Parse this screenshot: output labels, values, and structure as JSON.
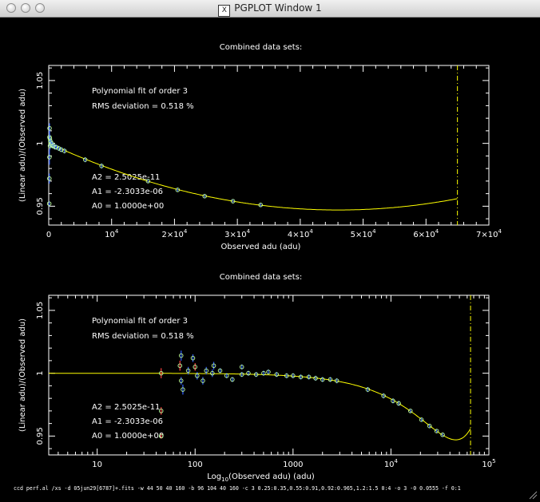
{
  "window": {
    "title": "PGPLOT Window 1",
    "icon": "x11-icon"
  },
  "command_line": "ccd perf.al /xs -d 05jun29[6787]+.fits -w 44 50 40 160 -b 96 104 40 160 -c 3 0.25:0.35,0.55:0.91,0.92:0.965,1.2:1.5 0:4 -o 3 -0 0.0555 -f 0:1",
  "chart_data": [
    {
      "type": "scatter",
      "title": "Combined data sets:",
      "xlabel": "Observed adu (adu)",
      "ylabel": "(Linear adu)/(Observed adu)",
      "xscale": "linear",
      "xlim": [
        0,
        70000
      ],
      "ylim": [
        0.935,
        1.062
      ],
      "x_ticks": [
        "0",
        "10^4",
        "2×10^4",
        "3×10^4",
        "4×10^4",
        "5×10^4",
        "6×10^4",
        "7×10^4"
      ],
      "y_ticks": [
        "0.95",
        "1",
        "1.05"
      ],
      "annotations": [
        "Polynomial fit of order  3",
        "RMS deviation =     0.518 %"
      ],
      "coefficients": [
        "A2 = 2.5025e-11",
        "A1 = -2.3033e-06",
        "A0 = 1.0000e+00"
      ],
      "saturation_line_x": 65000,
      "fit": {
        "A0": 1.0,
        "A1": -2.3033e-06,
        "A2": 2.5025e-11,
        "x_range": [
          0,
          65000
        ]
      },
      "points": [
        {
          "x": 80,
          "y": 0.952,
          "err": 0.002
        },
        {
          "x": 100,
          "y": 0.972,
          "err": 0.004
        },
        {
          "x": 110,
          "y": 0.989,
          "err": 0.006
        },
        {
          "x": 120,
          "y": 1.005,
          "err": 0.007
        },
        {
          "x": 130,
          "y": 1.012,
          "err": 0.004
        },
        {
          "x": 180,
          "y": 1.004,
          "err": 0.003
        },
        {
          "x": 200,
          "y": 0.998,
          "err": 0.003
        },
        {
          "x": 250,
          "y": 1.002,
          "err": 0.002
        },
        {
          "x": 300,
          "y": 1.001,
          "err": 0.002
        },
        {
          "x": 400,
          "y": 0.999,
          "err": 0.002
        },
        {
          "x": 500,
          "y": 1.0,
          "err": 0.002
        },
        {
          "x": 600,
          "y": 0.998,
          "err": 0.002
        },
        {
          "x": 800,
          "y": 0.998,
          "err": 0.002
        },
        {
          "x": 1000,
          "y": 0.997,
          "err": 0.002
        },
        {
          "x": 1200,
          "y": 0.997,
          "err": 0.002
        },
        {
          "x": 1600,
          "y": 0.996,
          "err": 0.002
        },
        {
          "x": 2000,
          "y": 0.995,
          "err": 0.002
        },
        {
          "x": 2500,
          "y": 0.994,
          "err": 0.002
        },
        {
          "x": 5800,
          "y": 0.987,
          "err": 0.002
        },
        {
          "x": 8400,
          "y": 0.982,
          "err": 0.002
        },
        {
          "x": 15800,
          "y": 0.97,
          "err": 0.0015
        },
        {
          "x": 20500,
          "y": 0.963,
          "err": 0.0015
        },
        {
          "x": 24800,
          "y": 0.958,
          "err": 0.0015
        },
        {
          "x": 29300,
          "y": 0.954,
          "err": 0.0015
        },
        {
          "x": 33700,
          "y": 0.951,
          "err": 0.0015
        }
      ],
      "colors": {
        "fit": "#ffff00",
        "points": "#3060ff",
        "points_outline": "#c0ffa0",
        "points_low": "#ff4040",
        "saturation_line": "#ffff00",
        "axes": "#ffffff"
      }
    },
    {
      "type": "scatter",
      "title": "Combined data sets:",
      "xlabel": "Log10(Observed adu) (adu)",
      "ylabel": "(Linear adu)/(Observed adu)",
      "xscale": "log",
      "xlim": [
        3.2,
        100000
      ],
      "ylim": [
        0.935,
        1.062
      ],
      "x_ticks": [
        "10",
        "100",
        "1000",
        "10^4",
        "10^5"
      ],
      "y_ticks": [
        "0.95",
        "1",
        "1.05"
      ],
      "annotations": [
        "Polynomial fit of order  3",
        "RMS deviation =     0.518 %"
      ],
      "coefficients": [
        "A2 = 2.5025e-11",
        "A1 = -2.3033e-06",
        "A0 = 1.0000e+00"
      ],
      "saturation_line_x": 65000,
      "fit": {
        "A0": 1.0,
        "A1": -2.3033e-06,
        "A2": 2.5025e-11,
        "x_range": [
          3.2,
          65000
        ]
      },
      "points": [
        {
          "x": 45,
          "y": 1.0,
          "err": 0.004,
          "kind": "low"
        },
        {
          "x": 45,
          "y": 0.97,
          "err": 0.003,
          "kind": "low"
        },
        {
          "x": 45,
          "y": 0.95,
          "err": 0.002,
          "kind": "low"
        },
        {
          "x": 70,
          "y": 1.006,
          "err": 0.004,
          "kind": "low"
        },
        {
          "x": 72,
          "y": 1.014,
          "err": 0.004
        },
        {
          "x": 72,
          "y": 0.994,
          "err": 0.003
        },
        {
          "x": 75,
          "y": 0.987,
          "err": 0.004
        },
        {
          "x": 85,
          "y": 1.002,
          "err": 0.003
        },
        {
          "x": 95,
          "y": 1.012,
          "err": 0.003
        },
        {
          "x": 100,
          "y": 1.005,
          "err": 0.003,
          "kind": "low"
        },
        {
          "x": 105,
          "y": 0.998,
          "err": 0.003
        },
        {
          "x": 120,
          "y": 0.994,
          "err": 0.003
        },
        {
          "x": 130,
          "y": 1.002,
          "err": 0.003
        },
        {
          "x": 150,
          "y": 1.0,
          "err": 0.003
        },
        {
          "x": 155,
          "y": 1.006,
          "err": 0.003
        },
        {
          "x": 180,
          "y": 1.002,
          "err": 0.002
        },
        {
          "x": 210,
          "y": 0.998,
          "err": 0.002
        },
        {
          "x": 240,
          "y": 0.995,
          "err": 0.002
        },
        {
          "x": 300,
          "y": 1.005,
          "err": 0.002
        },
        {
          "x": 300,
          "y": 0.999,
          "err": 0.002
        },
        {
          "x": 350,
          "y": 1.0,
          "err": 0.002
        },
        {
          "x": 420,
          "y": 0.999,
          "err": 0.002
        },
        {
          "x": 500,
          "y": 1.0,
          "err": 0.002
        },
        {
          "x": 560,
          "y": 1.001,
          "err": 0.002
        },
        {
          "x": 680,
          "y": 0.999,
          "err": 0.002
        },
        {
          "x": 860,
          "y": 0.998,
          "err": 0.002
        },
        {
          "x": 1000,
          "y": 0.998,
          "err": 0.002
        },
        {
          "x": 1200,
          "y": 0.997,
          "err": 0.002
        },
        {
          "x": 1450,
          "y": 0.997,
          "err": 0.002
        },
        {
          "x": 1700,
          "y": 0.996,
          "err": 0.002
        },
        {
          "x": 2000,
          "y": 0.995,
          "err": 0.002
        },
        {
          "x": 2400,
          "y": 0.995,
          "err": 0.002
        },
        {
          "x": 2800,
          "y": 0.994,
          "err": 0.002
        },
        {
          "x": 5800,
          "y": 0.987,
          "err": 0.002
        },
        {
          "x": 8400,
          "y": 0.982,
          "err": 0.002
        },
        {
          "x": 10500,
          "y": 0.978,
          "err": 0.002
        },
        {
          "x": 12000,
          "y": 0.976,
          "err": 0.002
        },
        {
          "x": 15800,
          "y": 0.97,
          "err": 0.0015
        },
        {
          "x": 20500,
          "y": 0.963,
          "err": 0.0015
        },
        {
          "x": 24800,
          "y": 0.958,
          "err": 0.0015
        },
        {
          "x": 29300,
          "y": 0.954,
          "err": 0.0015
        },
        {
          "x": 33700,
          "y": 0.951,
          "err": 0.0015
        }
      ],
      "colors": {
        "fit": "#ffff00",
        "points": "#3060ff",
        "points_outline": "#c0ffa0",
        "points_low": "#ff4040",
        "saturation_line": "#ffff00",
        "axes": "#ffffff"
      }
    }
  ]
}
